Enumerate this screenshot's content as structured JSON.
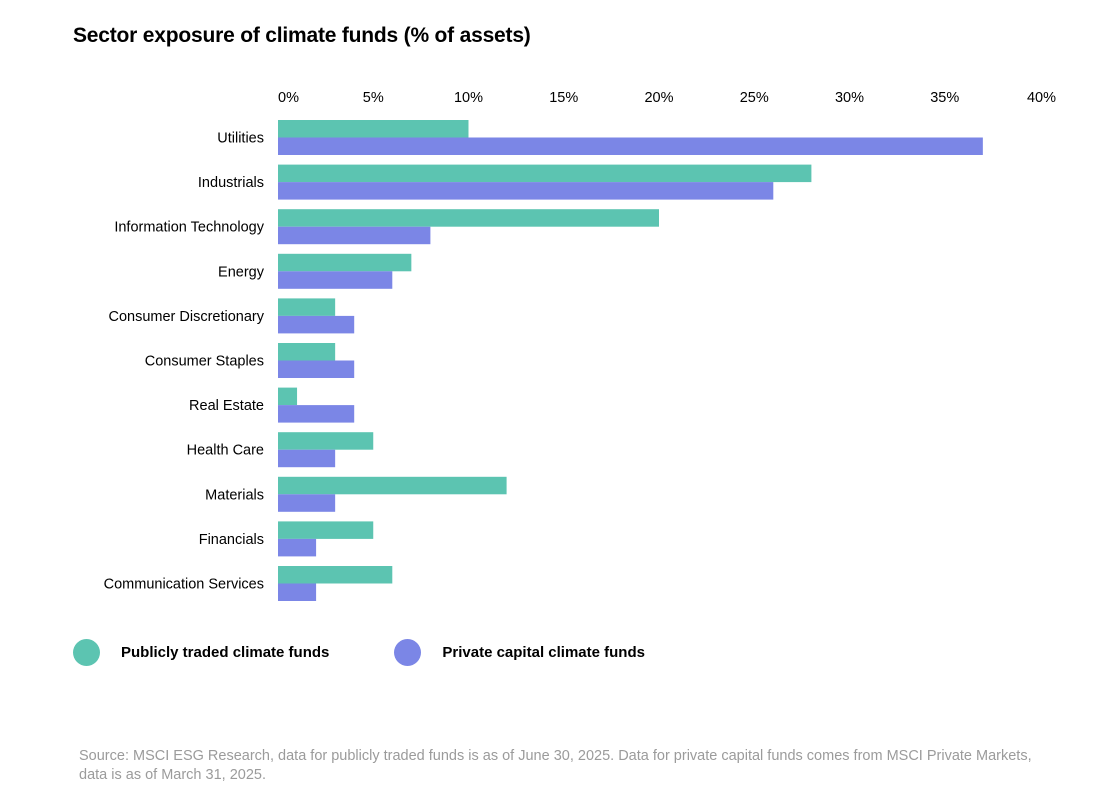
{
  "colors": {
    "public": "#5cc4b1",
    "private": "#7b86e6"
  },
  "chart_data": {
    "type": "bar",
    "orientation": "horizontal",
    "title": "Sector exposure of climate funds (% of assets)",
    "categories": [
      "Utilities",
      "Industrials",
      "Information Technology",
      "Energy",
      "Consumer Discretionary",
      "Consumer Staples",
      "Real Estate",
      "Health Care",
      "Materials",
      "Financials",
      "Communication Services"
    ],
    "series": [
      {
        "name": "Publicly traded climate funds",
        "values": [
          10,
          28,
          20,
          7,
          3,
          3,
          1,
          5,
          12,
          5,
          6
        ]
      },
      {
        "name": "Private capital climate funds",
        "values": [
          37,
          26,
          8,
          6,
          4,
          4,
          4,
          3,
          3,
          2,
          2
        ]
      }
    ],
    "xticks": [
      "0%",
      "5%",
      "10%",
      "15%",
      "20%",
      "25%",
      "30%",
      "35%",
      "40%"
    ],
    "xlim": [
      0,
      40
    ],
    "legend_position": "bottom-left",
    "grid": false
  },
  "source": "Source: MSCI ESG Research, data for publicly traded funds is as of June 30, 2025. Data for private capital funds comes from MSCI Private Markets, data is as of March 31, 2025."
}
